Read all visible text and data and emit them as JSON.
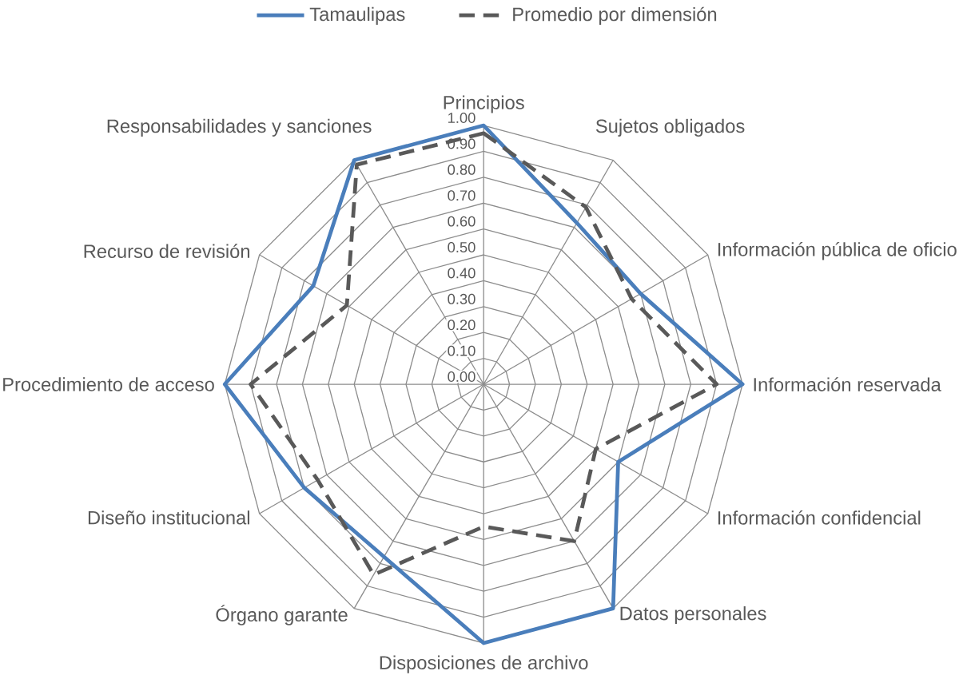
{
  "chart_data": {
    "type": "radar",
    "categories": [
      "Principios",
      "Sujetos obligados",
      "Información pública de oficio",
      "Información reservada",
      "Información confidencial",
      "Datos personales",
      "Disposiciones  de archivo",
      "Órgano garante",
      "Diseño institucional",
      "Procedimiento de acceso",
      "Recurso de revisión",
      "Responsabilidades y sanciones"
    ],
    "series": [
      {
        "name": "Tamaulipas",
        "color": "#4a7ebb",
        "line_style": "solid",
        "values": [
          1.0,
          0.72,
          0.7,
          1.0,
          0.6,
          1.0,
          1.0,
          0.77,
          0.8,
          1.0,
          0.76,
          1.0
        ]
      },
      {
        "name": "Promedio por dimensión",
        "color": "#595959",
        "line_style": "dashed",
        "values": [
          0.97,
          0.79,
          0.66,
          0.9,
          0.5,
          0.7,
          0.55,
          0.85,
          0.74,
          0.9,
          0.61,
          0.98
        ]
      }
    ],
    "ylim": [
      0,
      1
    ],
    "yticks": [
      {
        "value": 0,
        "label": "0.00"
      },
      {
        "value": 0.1,
        "label": "0.10"
      },
      {
        "value": 0.2,
        "label": "0.20"
      },
      {
        "value": 0.3,
        "label": "0.30"
      },
      {
        "value": 0.4,
        "label": "0.40"
      },
      {
        "value": 0.5,
        "label": "0.50"
      },
      {
        "value": 0.6,
        "label": "0.60"
      },
      {
        "value": 0.7,
        "label": "0.70"
      },
      {
        "value": 0.8,
        "label": "0.80"
      },
      {
        "value": 0.9,
        "label": "0.90"
      },
      {
        "value": 1,
        "label": "1.00"
      }
    ],
    "grid": true,
    "legend": "top"
  }
}
